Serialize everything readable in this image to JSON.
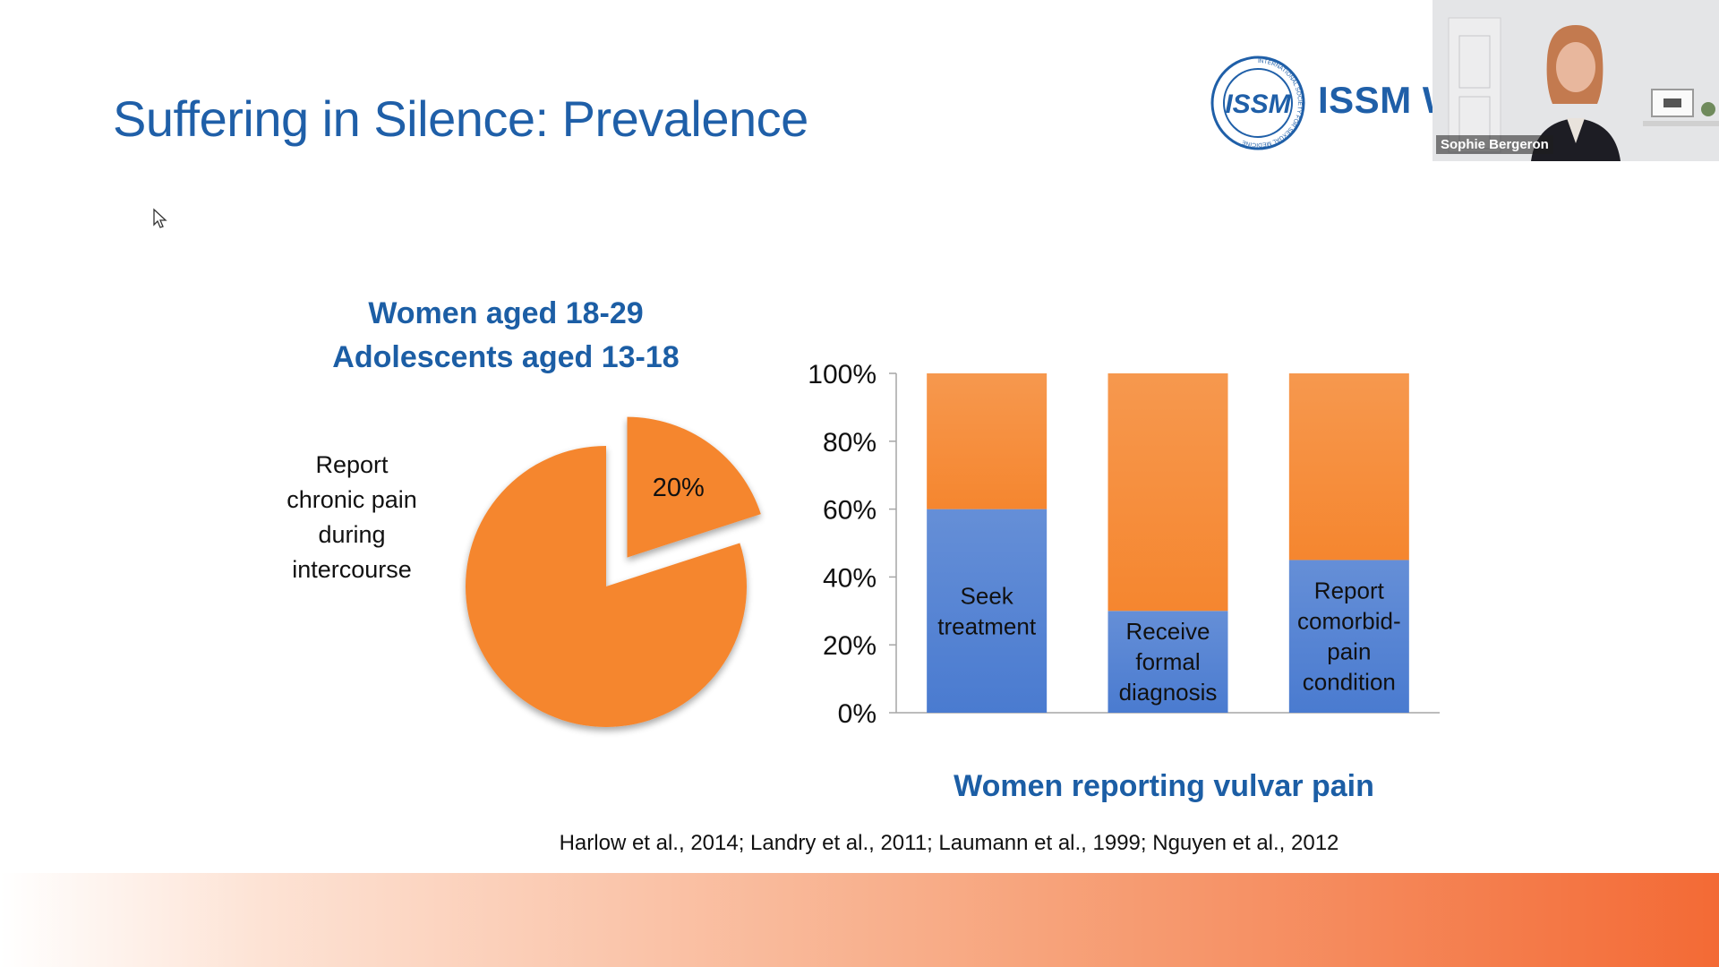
{
  "slide": {
    "title": "Suffering in Silence: Prevalence",
    "logo_text": "ISSM W",
    "logo_ring_text": "INTERNATIONAL SOCIETY FOR SEXUAL MEDICINE",
    "logo_mark": "ISSM",
    "citation": "Harlow et al., 2014; Landry et al., 2011; Laumann et al., 1999; Nguyen et al., 2012"
  },
  "video": {
    "participant_name": "Sophie Bergeron"
  },
  "pie": {
    "heading_line1": "Women aged 18-29",
    "heading_line2": "Adolescents aged 13-18",
    "label_lines": [
      "Report",
      "chronic pain",
      "during",
      "intercourse"
    ]
  },
  "bar": {
    "subtitle": "Women reporting vulvar pain"
  },
  "chart_data": [
    {
      "type": "pie",
      "values": [
        20,
        80
      ],
      "slice_labels": [
        "20%",
        ""
      ],
      "colors": [
        "#f5862f",
        "#f5862f"
      ],
      "exploded_slice": 0
    },
    {
      "type": "bar",
      "stacked": true,
      "percent_stacked": true,
      "categories": [
        [
          "Seek",
          "treatment"
        ],
        [
          "Receive",
          "formal",
          "diagnosis"
        ],
        [
          "Report",
          "comorbid-",
          "pain",
          "condition"
        ]
      ],
      "series": [
        {
          "values": [
            60,
            30,
            45
          ],
          "color": "#4a7bd0"
        },
        {
          "values": [
            40,
            70,
            55
          ],
          "color": "#f5862f"
        }
      ],
      "ylim": [
        0,
        100
      ],
      "yticks": [
        "0%",
        "20%",
        "40%",
        "60%",
        "80%",
        "100%"
      ],
      "yticks_values": [
        0,
        20,
        40,
        60,
        80,
        100
      ],
      "grid": false,
      "legend": "none"
    }
  ],
  "colors": {
    "title_blue": "#1f5fa8",
    "heading_blue": "#1c5ea5",
    "orange": "#f5862f",
    "blue": "#4a7bd0"
  }
}
